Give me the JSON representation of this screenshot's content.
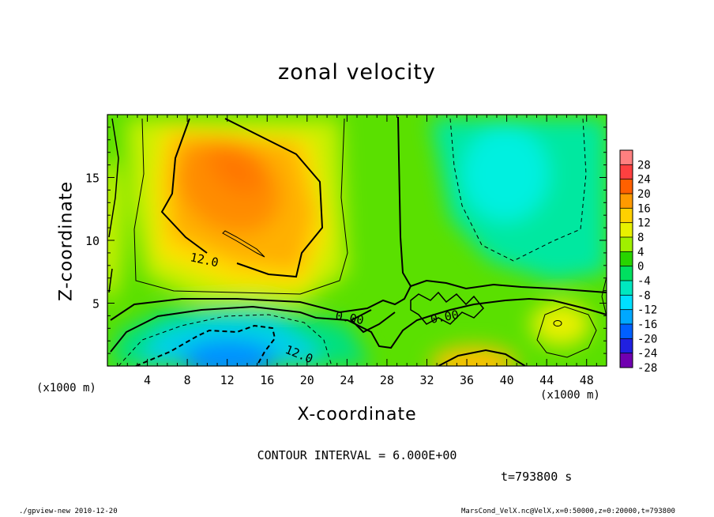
{
  "chart_data": {
    "type": "heatmap",
    "title": "zonal velocity",
    "xlabel": "X-coordinate",
    "ylabel": "Z-coordinate",
    "x_unit_label": "(x1000 m)",
    "y_unit_label": "(x1000 m)",
    "xlim": [
      0,
      50
    ],
    "ylim": [
      0,
      20
    ],
    "x_ticks": [
      "4",
      "8",
      "12",
      "16",
      "20",
      "24",
      "28",
      "32",
      "36",
      "40",
      "44",
      "48"
    ],
    "x_tick_values": [
      4,
      8,
      12,
      16,
      20,
      24,
      28,
      32,
      36,
      40,
      44,
      48
    ],
    "y_ticks": [
      "5",
      "10",
      "15"
    ],
    "y_tick_values": [
      5,
      10,
      15
    ],
    "colorbar_labels": [
      "28",
      "24",
      "20",
      "16",
      "12",
      "8",
      "4",
      "0",
      "-4",
      "-8",
      "-12",
      "-16",
      "-20",
      "-24",
      "-28"
    ],
    "colorbar_values": [
      28,
      24,
      20,
      16,
      12,
      8,
      4,
      0,
      -4,
      -8,
      -12,
      -16,
      -20,
      -24,
      -28
    ],
    "colors": [
      "#ff8080",
      "#ff4040",
      "#ff6000",
      "#ff9a00",
      "#ffd000",
      "#e8f000",
      "#a0f000",
      "#28d400",
      "#00e060",
      "#00e8c0",
      "#00e0ff",
      "#00a8ff",
      "#0060ff",
      "#2020e0",
      "#7000b0"
    ],
    "contour_labels": [
      "12.0",
      "0.00",
      "0.00",
      "12.0"
    ],
    "contour_interval_text": "CONTOUR INTERVAL = 6.000E+00",
    "features": [
      {
        "x": 14,
        "z": 14,
        "value": 18
      },
      {
        "x": 38,
        "z": 0.5,
        "value": 14
      },
      {
        "x": 45,
        "z": 3.5,
        "value": 10
      },
      {
        "x": 13,
        "z": 1.5,
        "value": -14
      },
      {
        "x": 46,
        "z": 14,
        "value": -9
      }
    ]
  },
  "annotations": {
    "time": "t=793800 s",
    "footer_left": "./gpview-new  2010-12-20",
    "footer_right": "MarsCond_VelX.nc@VelX,x=0:50000,z=0:20000,t=793800"
  }
}
